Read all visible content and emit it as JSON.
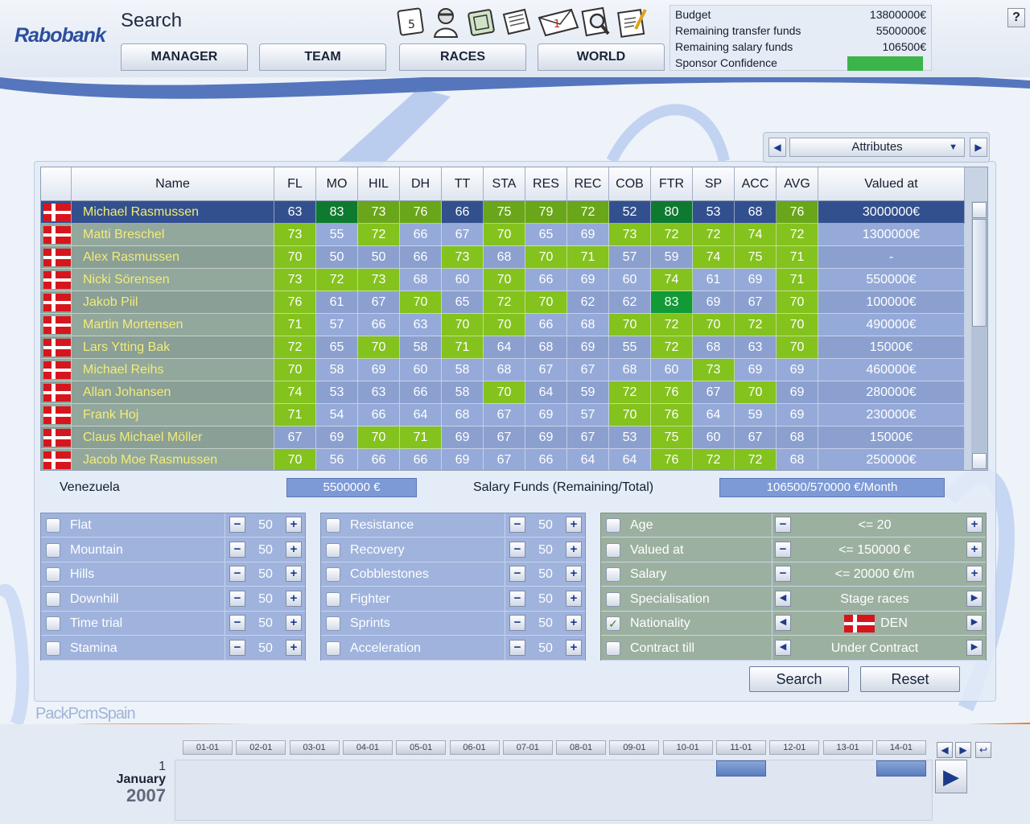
{
  "header": {
    "logo": "Rabobank",
    "page_title": "Search",
    "nav": [
      {
        "label": "MANAGER"
      },
      {
        "label": "TEAM"
      },
      {
        "label": "RACES"
      },
      {
        "label": "WORLD"
      }
    ],
    "toolbar_icons": [
      "calendar-icon",
      "rider-icon",
      "money-icon",
      "newspaper-icon",
      "mail-icon",
      "search-icon",
      "notepad-icon"
    ],
    "calendar_day": "5",
    "mail_count": "1",
    "help_label": "?"
  },
  "funds": {
    "budget_label": "Budget",
    "budget": "13800000€",
    "transfer_label": "Remaining transfer funds",
    "transfer": "5500000€",
    "salary_label": "Remaining salary funds",
    "salary": "106500€",
    "confidence_label": "Sponsor Confidence",
    "confidence_color": "#3bb54a"
  },
  "view_selector": {
    "label": "Attributes",
    "prev": "◀",
    "next": "▶",
    "dropdown": "▼"
  },
  "table": {
    "columns": [
      "Name",
      "FL",
      "MO",
      "HIL",
      "DH",
      "TT",
      "STA",
      "RES",
      "REC",
      "COB",
      "FTR",
      "SP",
      "ACC",
      "AVG",
      "Valued at"
    ],
    "rows": [
      {
        "name": "Michael Rasmussen",
        "stats": [
          63,
          83,
          73,
          76,
          66,
          75,
          79,
          72,
          52,
          80,
          53,
          68,
          76
        ],
        "value": "3000000€",
        "selected": true
      },
      {
        "name": "Matti Breschel",
        "stats": [
          73,
          55,
          72,
          66,
          67,
          70,
          65,
          69,
          73,
          72,
          72,
          74,
          72
        ],
        "value": "1300000€"
      },
      {
        "name": "Alex Rasmussen",
        "stats": [
          70,
          50,
          50,
          66,
          73,
          68,
          70,
          71,
          57,
          59,
          74,
          75,
          71
        ],
        "value": "-"
      },
      {
        "name": "Nicki Sörensen",
        "stats": [
          73,
          72,
          73,
          68,
          60,
          70,
          66,
          69,
          60,
          74,
          61,
          69,
          71
        ],
        "value": "550000€"
      },
      {
        "name": "Jakob Piil",
        "stats": [
          76,
          61,
          67,
          70,
          65,
          72,
          70,
          62,
          62,
          83,
          69,
          67,
          70
        ],
        "value": "100000€"
      },
      {
        "name": "Martin Mortensen",
        "stats": [
          71,
          57,
          66,
          63,
          70,
          70,
          66,
          68,
          70,
          72,
          70,
          72,
          70
        ],
        "value": "490000€"
      },
      {
        "name": "Lars Ytting Bak",
        "stats": [
          72,
          65,
          70,
          58,
          71,
          64,
          68,
          69,
          55,
          72,
          68,
          63,
          70
        ],
        "value": "15000€"
      },
      {
        "name": "Michael Reihs",
        "stats": [
          70,
          58,
          69,
          60,
          58,
          68,
          67,
          67,
          68,
          60,
          73,
          69,
          69
        ],
        "value": "460000€"
      },
      {
        "name": "Allan Johansen",
        "stats": [
          74,
          53,
          63,
          66,
          58,
          70,
          64,
          59,
          72,
          76,
          67,
          70,
          69
        ],
        "value": "280000€"
      },
      {
        "name": "Frank Hoj",
        "stats": [
          71,
          54,
          66,
          64,
          68,
          67,
          69,
          57,
          70,
          76,
          64,
          59,
          69
        ],
        "value": "230000€"
      },
      {
        "name": "Claus Michael Möller",
        "stats": [
          67,
          69,
          70,
          71,
          69,
          67,
          69,
          67,
          53,
          75,
          60,
          67,
          68
        ],
        "value": "15000€"
      },
      {
        "name": "Jacob Moe Rasmussen",
        "stats": [
          70,
          56,
          66,
          66,
          69,
          67,
          66,
          64,
          64,
          76,
          72,
          72,
          68
        ],
        "value": "250000€"
      }
    ]
  },
  "summary": {
    "team_label": "Venezuela",
    "team_funds": "5500000 €",
    "salary_label": "Salary Funds (Remaining/Total)",
    "salary_value": "106500/570000 €/Month"
  },
  "filters": {
    "col1": [
      {
        "label": "Flat",
        "value": "50"
      },
      {
        "label": "Mountain",
        "value": "50"
      },
      {
        "label": "Hills",
        "value": "50"
      },
      {
        "label": "Downhill",
        "value": "50"
      },
      {
        "label": "Time trial",
        "value": "50"
      },
      {
        "label": "Stamina",
        "value": "50"
      }
    ],
    "col2": [
      {
        "label": "Resistance",
        "value": "50"
      },
      {
        "label": "Recovery",
        "value": "50"
      },
      {
        "label": "Cobblestones",
        "value": "50"
      },
      {
        "label": "Fighter",
        "value": "50"
      },
      {
        "label": "Sprints",
        "value": "50"
      },
      {
        "label": "Acceleration",
        "value": "50"
      }
    ],
    "col3": [
      {
        "label": "Age",
        "value": "<= 20",
        "type": "stepper",
        "checked": false
      },
      {
        "label": "Valued at",
        "value": "<= 150000 €",
        "type": "stepper",
        "checked": false
      },
      {
        "label": "Salary",
        "value": "<= 20000 €/m",
        "type": "stepper",
        "checked": false
      },
      {
        "label": "Specialisation",
        "value": "Stage races",
        "type": "select",
        "checked": false
      },
      {
        "label": "Nationality",
        "value": "DEN",
        "type": "select",
        "checked": true
      },
      {
        "label": "Contract till",
        "value": "Under Contract",
        "type": "select",
        "checked": false
      }
    ],
    "minus": "−",
    "plus": "+",
    "prev": "◀",
    "next": "▶",
    "check": "✓"
  },
  "actions": {
    "search": "Search",
    "reset": "Reset"
  },
  "footer": {
    "brand": "PackPcmSpain",
    "dates": [
      "01-01",
      "02-01",
      "03-01",
      "04-01",
      "05-01",
      "06-01",
      "07-01",
      "08-01",
      "09-01",
      "10-01",
      "11-01",
      "12-01",
      "13-01",
      "14-01"
    ],
    "day": "1",
    "month": "January",
    "year": "2007",
    "nav_prev": "◀",
    "nav_next": "▶",
    "nav_jump": "↩",
    "nav_continue": "▶"
  }
}
